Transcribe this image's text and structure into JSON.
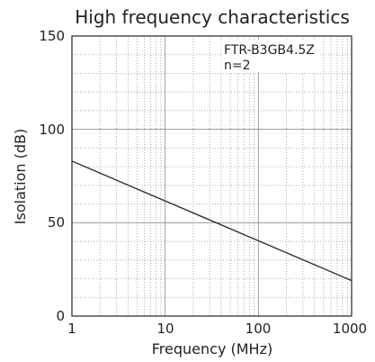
{
  "chart_data": {
    "type": "line",
    "title": "High frequency characteristics",
    "xlabel": "Frequency (MHz)",
    "ylabel": "Isolation (dB)",
    "x_scale": "log",
    "xlim": [
      1,
      1000
    ],
    "ylim": [
      0,
      150
    ],
    "x_ticks": [
      1,
      10,
      100,
      1000
    ],
    "x_tick_labels": [
      "1",
      "10",
      "100",
      "1000"
    ],
    "y_ticks": [
      0,
      50,
      100,
      150
    ],
    "y_tick_labels": [
      "0",
      "50",
      "100",
      "150"
    ],
    "y_minor_step": 10,
    "grid": true,
    "annotations": [
      "FTR-B3GB4.5Z",
      "n=2"
    ],
    "series": [
      {
        "x": [
          1,
          1000
        ],
        "y": [
          83,
          19
        ],
        "color": "#333333"
      }
    ]
  }
}
